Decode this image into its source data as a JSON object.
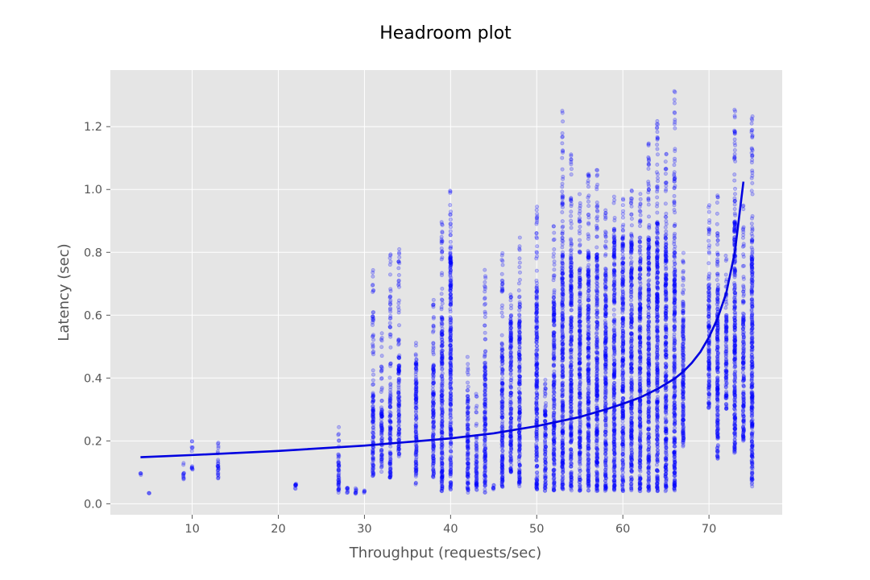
{
  "chart_data": {
    "type": "scatter",
    "title": "Headroom plot",
    "xlabel": "Throughput (requests/sec)",
    "ylabel": "Latency (sec)",
    "xlim": [
      0.5,
      78.5
    ],
    "ylim": [
      -0.035,
      1.38
    ],
    "xticks": [
      10,
      20,
      30,
      40,
      50,
      60,
      70
    ],
    "yticks": [
      0.0,
      0.2,
      0.4,
      0.6,
      0.8,
      1.0,
      1.2
    ],
    "grid": true,
    "colors": {
      "points": "#0000ff",
      "fit": "#0000e0",
      "background": "#e5e5e5",
      "grid": "#ffffff"
    },
    "scatter_groups": [
      {
        "x": 4,
        "low": [
          0.09,
          0.1
        ]
      },
      {
        "x": 5,
        "low": [
          0.03,
          0.035
        ],
        "high": [
          0.137
        ]
      },
      {
        "x": 9,
        "low": [
          0.075,
          0.1
        ],
        "high": [
          0.12,
          0.145
        ]
      },
      {
        "x": 10,
        "low": [
          0.1,
          0.12
        ],
        "high": [
          0.15,
          0.22
        ]
      },
      {
        "x": 13,
        "low": [
          0.08,
          0.14
        ],
        "high": [
          0.16,
          0.235
        ]
      },
      {
        "x": 22,
        "low": [
          0.04,
          0.07
        ]
      },
      {
        "x": 27,
        "low": [
          0.03,
          0.16
        ],
        "high": [
          0.18,
          0.25
        ]
      },
      {
        "x": 28,
        "low": [
          0.03,
          0.055
        ]
      },
      {
        "x": 29,
        "low": [
          0.03,
          0.055
        ]
      },
      {
        "x": 30,
        "low": [
          0.03,
          0.045
        ]
      },
      {
        "x": 31,
        "low": [
          0.085,
          0.35
        ],
        "high": [
          0.35,
          0.76
        ]
      },
      {
        "x": 32,
        "low": [
          0.1,
          0.3
        ],
        "high": [
          0.3,
          0.55
        ]
      },
      {
        "x": 33,
        "low": [
          0.08,
          0.35
        ],
        "high": [
          0.35,
          0.81
        ]
      },
      {
        "x": 34,
        "low": [
          0.15,
          0.45
        ],
        "high": [
          0.45,
          0.835
        ]
      },
      {
        "x": 36,
        "low": [
          0.06,
          0.45
        ],
        "high": [
          0.45,
          0.52
        ]
      },
      {
        "x": 38,
        "low": [
          0.08,
          0.45
        ],
        "high": [
          0.45,
          0.67
        ]
      },
      {
        "x": 39,
        "low": [
          0.04,
          0.6
        ],
        "high": [
          0.6,
          0.9
        ]
      },
      {
        "x": 40,
        "low": [
          0.04,
          0.8
        ],
        "high": [
          0.8,
          1.005
        ]
      },
      {
        "x": 42,
        "low": [
          0.035,
          0.35
        ],
        "high": [
          0.35,
          0.47
        ]
      },
      {
        "x": 43,
        "low": [
          0.035,
          0.2
        ],
        "high": [
          0.2,
          0.35
        ]
      },
      {
        "x": 44,
        "low": [
          0.035,
          0.45
        ],
        "high": [
          0.45,
          0.745
        ]
      },
      {
        "x": 45,
        "low": [
          0.04,
          0.06
        ]
      },
      {
        "x": 46,
        "low": [
          0.05,
          0.5
        ],
        "high": [
          0.5,
          0.8
        ]
      },
      {
        "x": 47,
        "low": [
          0.1,
          0.6
        ],
        "high": [
          0.6,
          0.68
        ]
      },
      {
        "x": 48,
        "low": [
          0.05,
          0.6
        ],
        "high": [
          0.6,
          0.85
        ]
      },
      {
        "x": 50,
        "low": [
          0.04,
          0.7
        ],
        "high": [
          0.7,
          0.95
        ]
      },
      {
        "x": 51,
        "low": [
          0.04,
          0.3
        ],
        "high": [
          0.3,
          0.45
        ]
      },
      {
        "x": 52,
        "low": [
          0.04,
          0.65
        ],
        "high": [
          0.65,
          0.9
        ]
      },
      {
        "x": 53,
        "low": [
          0.04,
          0.8
        ],
        "high": [
          0.8,
          1.29
        ]
      },
      {
        "x": 54,
        "low": [
          0.04,
          0.8
        ],
        "high": [
          0.8,
          1.115
        ]
      },
      {
        "x": 55,
        "low": [
          0.04,
          0.75
        ],
        "high": [
          0.75,
          0.99
        ]
      },
      {
        "x": 56,
        "low": [
          0.04,
          0.8
        ],
        "high": [
          0.8,
          1.05
        ]
      },
      {
        "x": 57,
        "low": [
          0.04,
          0.8
        ],
        "high": [
          0.8,
          1.07
        ]
      },
      {
        "x": 58,
        "low": [
          0.04,
          0.75
        ],
        "high": [
          0.75,
          0.95
        ]
      },
      {
        "x": 59,
        "low": [
          0.04,
          0.85
        ],
        "high": [
          0.85,
          0.98
        ]
      },
      {
        "x": 60,
        "low": [
          0.04,
          0.85
        ],
        "high": [
          0.85,
          0.98
        ]
      },
      {
        "x": 61,
        "low": [
          0.04,
          0.85
        ],
        "high": [
          0.85,
          1.02
        ]
      },
      {
        "x": 62,
        "low": [
          0.04,
          0.85
        ],
        "high": [
          0.85,
          1.0
        ]
      },
      {
        "x": 63,
        "low": [
          0.04,
          0.85
        ],
        "high": [
          0.85,
          1.15
        ]
      },
      {
        "x": 64,
        "low": [
          0.04,
          0.9
        ],
        "high": [
          0.9,
          1.22
        ]
      },
      {
        "x": 65,
        "low": [
          0.04,
          0.85
        ],
        "high": [
          0.85,
          1.12
        ]
      },
      {
        "x": 66,
        "low": [
          0.04,
          0.8
        ],
        "high": [
          0.8,
          1.32
        ]
      },
      {
        "x": 67,
        "low": [
          0.17,
          0.65
        ],
        "high": [
          0.65,
          0.8
        ]
      },
      {
        "x": 70,
        "low": [
          0.3,
          0.7
        ],
        "high": [
          0.7,
          0.95
        ]
      },
      {
        "x": 71,
        "low": [
          0.14,
          0.7
        ],
        "high": [
          0.7,
          0.99
        ]
      },
      {
        "x": 72,
        "low": [
          0.3,
          0.6
        ],
        "high": [
          0.6,
          0.8
        ]
      },
      {
        "x": 73,
        "low": [
          0.155,
          0.9
        ],
        "high": [
          0.9,
          1.27
        ]
      },
      {
        "x": 74,
        "low": [
          0.2,
          0.6
        ],
        "high": [
          0.6,
          0.97
        ]
      },
      {
        "x": 75,
        "low": [
          0.055,
          0.85
        ],
        "high": [
          0.85,
          1.25
        ]
      }
    ],
    "fit_line": {
      "x": [
        4,
        10,
        20,
        30,
        40,
        45,
        50,
        55,
        58,
        60,
        62,
        64,
        66,
        67,
        68,
        69,
        70,
        71,
        72,
        73,
        74
      ],
      "y": [
        0.148,
        0.155,
        0.168,
        0.185,
        0.208,
        0.224,
        0.247,
        0.276,
        0.3,
        0.318,
        0.338,
        0.365,
        0.398,
        0.42,
        0.448,
        0.483,
        0.53,
        0.59,
        0.67,
        0.8,
        1.025
      ]
    }
  }
}
